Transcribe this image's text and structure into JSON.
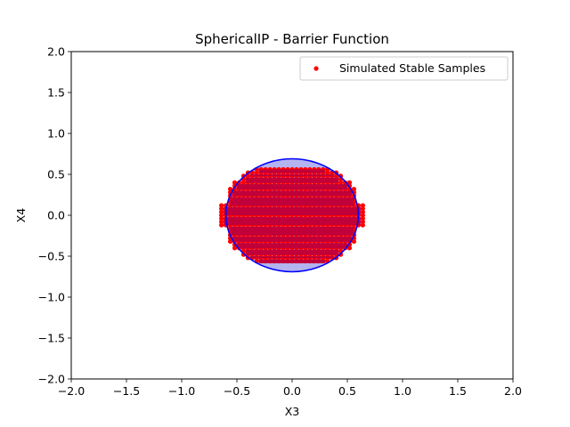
{
  "chart_data": {
    "type": "scatter",
    "title": "SphericalIP - Barrier Function",
    "xlabel": "X3",
    "ylabel": "X4",
    "xlim": [
      -2.0,
      2.0
    ],
    "ylim": [
      -2.0,
      2.0
    ],
    "xticks": [
      -2.0,
      -1.5,
      -1.0,
      -0.5,
      0.0,
      0.5,
      1.0,
      1.5,
      2.0
    ],
    "yticks": [
      -2.0,
      -1.5,
      -1.0,
      -0.5,
      0.0,
      0.5,
      1.0,
      1.5,
      2.0
    ],
    "xtick_labels": [
      "−2.0",
      "−1.5",
      "−1.0",
      "−0.5",
      "0.0",
      "0.5",
      "1.0",
      "1.5",
      "2.0"
    ],
    "ytick_labels": [
      "−2.0",
      "−1.5",
      "−1.0",
      "−0.5",
      "0.0",
      "0.5",
      "1.0",
      "1.5",
      "2.0"
    ],
    "grid": false,
    "legend": {
      "position": "upper right",
      "entries": [
        "Simulated Stable Samples"
      ]
    },
    "barrier_region": {
      "shape": "ellipse",
      "center": [
        0.0,
        0.0
      ],
      "semi_axes": [
        0.6,
        0.69
      ],
      "edge_color": "#0000ff",
      "fill_color": "#b4b4f0"
    },
    "stable_samples": {
      "name": "Simulated Stable Samples",
      "color": "#ff0000",
      "region_color": "#c0003a",
      "grid_step": 0.04,
      "profile": [
        {
          "x4_max": 0.12,
          "x3_max": 0.64
        },
        {
          "x4_max": 0.24,
          "x3_max": 0.58
        },
        {
          "x4_max": 0.32,
          "x3_max": 0.56
        },
        {
          "x4_max": 0.4,
          "x3_max": 0.52
        },
        {
          "x4_max": 0.48,
          "x3_max": 0.44
        },
        {
          "x4_max": 0.52,
          "x3_max": 0.4
        },
        {
          "x4_max": 0.58,
          "x3_max": 0.32
        }
      ]
    }
  }
}
